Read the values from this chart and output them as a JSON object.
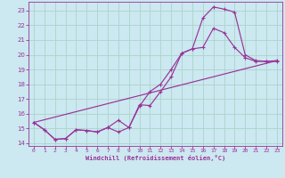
{
  "bg_color": "#cce8f0",
  "grid_color": "#aad4cc",
  "line_color": "#993399",
  "xlabel": "Windchill (Refroidissement éolien,°C)",
  "xlim": [
    -0.5,
    23.5
  ],
  "ylim": [
    13.8,
    23.6
  ],
  "yticks": [
    14,
    15,
    16,
    17,
    18,
    19,
    20,
    21,
    22,
    23
  ],
  "xticks": [
    0,
    1,
    2,
    3,
    4,
    5,
    6,
    7,
    8,
    9,
    10,
    11,
    12,
    13,
    14,
    15,
    16,
    17,
    18,
    19,
    20,
    21,
    22,
    23
  ],
  "line1_x": [
    0,
    1,
    2,
    3,
    4,
    5,
    6,
    7,
    8,
    9,
    10,
    11,
    12,
    13,
    14,
    15,
    16,
    17,
    18,
    19,
    20,
    21,
    22,
    23
  ],
  "line1_y": [
    15.4,
    14.9,
    14.25,
    14.3,
    14.9,
    14.85,
    14.75,
    15.05,
    14.75,
    15.05,
    16.5,
    17.5,
    18.0,
    19.0,
    20.1,
    20.4,
    22.5,
    23.25,
    23.1,
    22.9,
    20.0,
    19.6,
    19.55,
    19.6
  ],
  "line2_x": [
    0,
    1,
    2,
    3,
    4,
    5,
    6,
    7,
    8,
    9,
    10,
    11,
    12,
    13,
    14,
    15,
    16,
    17,
    18,
    19,
    20,
    21,
    22,
    23
  ],
  "line2_y": [
    15.4,
    14.9,
    14.25,
    14.3,
    14.9,
    14.85,
    14.75,
    15.05,
    15.55,
    15.05,
    16.6,
    16.55,
    17.5,
    18.5,
    20.1,
    20.4,
    20.5,
    21.8,
    21.5,
    20.5,
    19.8,
    19.55,
    19.55,
    19.55
  ],
  "line3_x": [
    0,
    23
  ],
  "line3_y": [
    15.4,
    19.6
  ]
}
